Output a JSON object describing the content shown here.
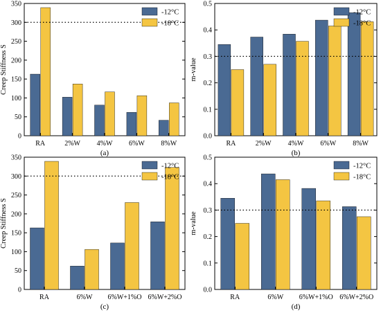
{
  "colors": {
    "s1": "#4a6a93",
    "s2": "#f4c542",
    "ref_line": "#000000"
  },
  "chart_data": [
    {
      "panel": "(a)",
      "type": "bar",
      "categories": [
        "RA",
        "2%W",
        "4%W",
        "6%W",
        "8%W"
      ],
      "series": [
        {
          "name": "-12°C",
          "values": [
            163,
            102,
            81,
            62,
            41
          ]
        },
        {
          "name": "-18°C",
          "values": [
            339,
            137,
            116,
            106,
            87
          ]
        }
      ],
      "ylabel": "Creep Stiffness S",
      "ylim": [
        0,
        350
      ],
      "yticks": [
        "0",
        "50",
        "100",
        "150",
        "200",
        "250",
        "300",
        "350"
      ],
      "reference_line": 300,
      "legend": "top-right"
    },
    {
      "panel": "(b)",
      "type": "bar",
      "categories": [
        "RA",
        "2%W",
        "4%W",
        "6%W",
        "8%W"
      ],
      "series": [
        {
          "name": "-12°C",
          "values": [
            0.345,
            0.373,
            0.384,
            0.437,
            0.465
          ]
        },
        {
          "name": "-18°C",
          "values": [
            0.25,
            0.27,
            0.357,
            0.415,
            0.431
          ]
        }
      ],
      "ylabel": "m-value",
      "ylim": [
        0,
        0.5
      ],
      "yticks": [
        "0.0",
        "0.1",
        "0.2",
        "0.3",
        "0.4",
        "0.5"
      ],
      "reference_line": 0.3,
      "legend": "top-right"
    },
    {
      "panel": "(c)",
      "type": "bar",
      "categories": [
        "RA",
        "6%W",
        "6%W+1%O",
        "6%W+2%O"
      ],
      "series": [
        {
          "name": "-12°C",
          "values": [
            163,
            62,
            123,
            179
          ]
        },
        {
          "name": "-18°C",
          "values": [
            339,
            106,
            230,
            323
          ]
        }
      ],
      "ylabel": "Creep Stiffness S",
      "ylim": [
        0,
        350
      ],
      "yticks": [
        "0",
        "50",
        "100",
        "150",
        "200",
        "250",
        "300",
        "350"
      ],
      "reference_line": 300,
      "legend": "top-right"
    },
    {
      "panel": "(d)",
      "type": "bar",
      "categories": [
        "RA",
        "6%W",
        "6%W+1%O",
        "6%W+2%O"
      ],
      "series": [
        {
          "name": "-12°C",
          "values": [
            0.345,
            0.437,
            0.382,
            0.313
          ]
        },
        {
          "name": "-18°C",
          "values": [
            0.25,
            0.415,
            0.335,
            0.275
          ]
        }
      ],
      "ylabel": "m-value",
      "ylim": [
        0,
        0.5
      ],
      "yticks": [
        "0.0",
        "0.1",
        "0.2",
        "0.3",
        "0.4",
        "0.5"
      ],
      "reference_line": 0.3,
      "legend": "top-right"
    }
  ]
}
